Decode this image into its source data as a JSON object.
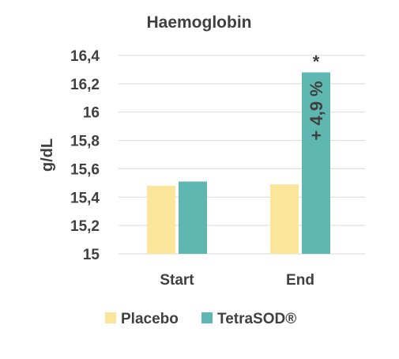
{
  "chart_data": {
    "type": "bar",
    "title": "Haemoglobin",
    "xlabel": "",
    "ylabel": "g/dL",
    "categories": [
      "Start",
      "End"
    ],
    "ylim": [
      15,
      16.4
    ],
    "yticks": [
      "15",
      "15,2",
      "15,4",
      "15,6",
      "15,8",
      "16",
      "16,2",
      "16,4"
    ],
    "ytick_values": [
      15,
      15.2,
      15.4,
      15.6,
      15.8,
      16,
      16.2,
      16.4
    ],
    "grid": true,
    "legend_position": "bottom",
    "series": [
      {
        "name": "Placebo",
        "color": "#fae59b",
        "values": [
          15.48,
          15.49
        ]
      },
      {
        "name": "TetraSOD®",
        "color": "#5fb7b1",
        "values": [
          15.51,
          16.28
        ]
      }
    ],
    "annotations": [
      {
        "text": "*",
        "series": 1,
        "category": 1
      },
      {
        "text": "+ 4,9 %",
        "series": 1,
        "category": 1
      }
    ]
  }
}
